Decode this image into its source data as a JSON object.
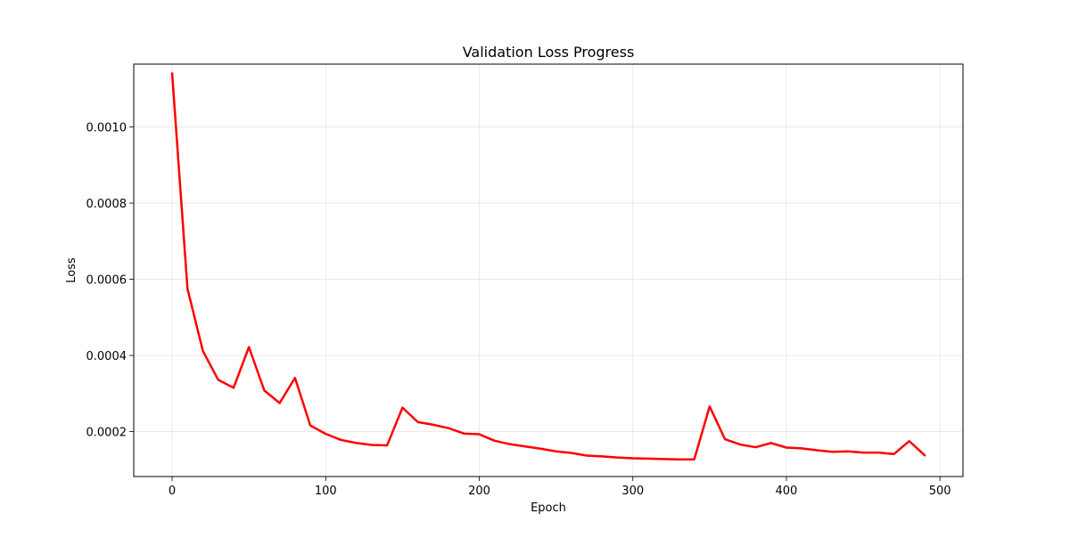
{
  "chart_data": {
    "type": "line",
    "title": "Validation Loss Progress",
    "xlabel": "Epoch",
    "ylabel": "Loss",
    "xlim": [
      -25,
      515
    ],
    "ylim": [
      8.2e-05,
      0.001165
    ],
    "xticks": [
      0,
      100,
      200,
      300,
      400,
      500
    ],
    "xtick_labels": [
      "0",
      "100",
      "200",
      "300",
      "400",
      "500"
    ],
    "yticks": [
      0.0002,
      0.0004,
      0.0006,
      0.0008,
      0.001
    ],
    "ytick_labels": [
      "0.0002",
      "0.0004",
      "0.0006",
      "0.0008",
      "0.0010"
    ],
    "grid": true,
    "series": [
      {
        "color": "#ff0000",
        "x": [
          0,
          10,
          20,
          30,
          40,
          50,
          60,
          70,
          80,
          90,
          100,
          110,
          120,
          130,
          140,
          150,
          160,
          170,
          180,
          190,
          200,
          210,
          220,
          230,
          240,
          250,
          260,
          270,
          280,
          290,
          300,
          310,
          320,
          330,
          340,
          350,
          360,
          370,
          380,
          390,
          400,
          410,
          420,
          430,
          440,
          450,
          460,
          470,
          480,
          490
        ],
        "values": [
          0.00114,
          0.000575,
          0.000412,
          0.000336,
          0.000315,
          0.000422,
          0.000308,
          0.000275,
          0.000341,
          0.000216,
          0.000194,
          0.000178,
          0.00017,
          0.000165,
          0.000164,
          0.000263,
          0.000225,
          0.000218,
          0.000209,
          0.000195,
          0.000193,
          0.000176,
          0.000167,
          0.000161,
          0.000155,
          0.000148,
          0.000144,
          0.000137,
          0.000135,
          0.000132,
          0.00013,
          0.000129,
          0.000128,
          0.000127,
          0.000127,
          0.000266,
          0.00018,
          0.000166,
          0.000159,
          0.00017,
          0.000158,
          0.000156,
          0.000151,
          0.000147,
          0.000148,
          0.000145,
          0.000145,
          0.000141,
          0.000175,
          0.000138
        ]
      }
    ]
  }
}
